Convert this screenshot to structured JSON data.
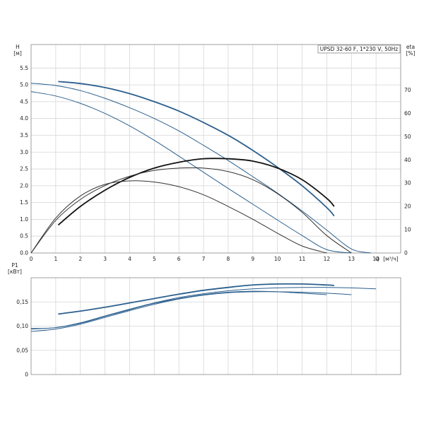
{
  "chart_data": [
    {
      "type": "line",
      "panel": "head-and-efficiency",
      "title": "UPSD 32-60 F, 1*230 V, 50Hz",
      "y_label": "H",
      "y_unit": "[м]",
      "y2_label": "eta",
      "y2_unit": "[%]",
      "x_label": "Q",
      "x_unit": "[м³/ч]",
      "xlim": [
        0,
        15
      ],
      "ylim": [
        0,
        6.2
      ],
      "y2lim": [
        0,
        89.6
      ],
      "grid": true,
      "x_ticks": [
        "0",
        "1",
        "2",
        "3",
        "4",
        "5",
        "6",
        "7",
        "8",
        "9",
        "10",
        "11",
        "12",
        "13",
        "14"
      ],
      "y_ticks": [
        "0.0",
        "0.5",
        "1.0",
        "1.5",
        "2.0",
        "2.5",
        "3.0",
        "3.5",
        "4.0",
        "4.5",
        "5.0",
        "5.5"
      ],
      "y2_ticks": [
        "0",
        "10",
        "20",
        "30",
        "40",
        "50",
        "60",
        "70"
      ],
      "head_curves": [
        {
          "color": "#2b5f8e",
          "width": 1.8,
          "x": [
            1.1,
            2,
            3,
            4,
            5,
            6,
            7,
            8,
            9,
            10,
            11,
            12,
            12.3
          ],
          "y": [
            5.1,
            5.04,
            4.92,
            4.74,
            4.5,
            4.22,
            3.88,
            3.5,
            3.05,
            2.55,
            2.0,
            1.35,
            1.1
          ]
        },
        {
          "color": "#2b5f8e",
          "width": 1.0,
          "x": [
            0,
            1,
            2,
            3,
            4,
            5,
            6,
            7,
            8,
            9,
            10,
            11,
            12,
            13,
            13.8
          ],
          "y": [
            5.05,
            4.98,
            4.83,
            4.6,
            4.32,
            4.0,
            3.63,
            3.2,
            2.75,
            2.27,
            1.78,
            1.25,
            0.68,
            0.12,
            0
          ]
        },
        {
          "color": "#2b5f8e",
          "width": 1.0,
          "x": [
            0,
            1,
            2,
            3,
            4,
            5,
            6,
            7,
            8,
            9,
            10,
            11,
            12,
            13
          ],
          "y": [
            4.8,
            4.67,
            4.45,
            4.15,
            3.78,
            3.35,
            2.88,
            2.4,
            1.92,
            1.45,
            0.98,
            0.52,
            0.1,
            0
          ]
        }
      ],
      "efficiency_curves": [
        {
          "color": "#111111",
          "width": 1.8,
          "x": [
            1.1,
            2,
            3,
            4,
            5,
            6,
            7,
            8,
            9,
            10,
            11,
            12,
            12.3
          ],
          "y": [
            12,
            20,
            27,
            32.5,
            36.5,
            39,
            40.5,
            40.5,
            39.5,
            36.5,
            31.5,
            23.5,
            20
          ]
        },
        {
          "color": "#333333",
          "width": 1.0,
          "x": [
            0,
            1,
            2,
            3,
            4,
            5,
            6,
            7,
            8,
            9,
            10,
            11,
            12,
            13
          ],
          "y": [
            0,
            14,
            23,
            29,
            33,
            35.5,
            36.5,
            36.5,
            35,
            31.5,
            25.5,
            17.5,
            7.5,
            0
          ]
        },
        {
          "color": "#333333",
          "width": 1.0,
          "x": [
            0,
            1,
            2,
            3,
            4,
            5,
            6,
            7,
            8,
            9,
            10,
            11,
            12
          ],
          "y": [
            0,
            15,
            24.5,
            29.5,
            31,
            30.5,
            28.5,
            25,
            20,
            14.5,
            8.5,
            3,
            0
          ]
        }
      ]
    },
    {
      "type": "line",
      "panel": "power",
      "y_label": "P1",
      "y_unit": "[кВт]",
      "xlim": [
        0,
        15
      ],
      "ylim": [
        0,
        0.2
      ],
      "grid": true,
      "y_ticks": [
        "0",
        "0,05",
        "0,10",
        "0,15"
      ],
      "power_curves": [
        {
          "color": "#2b5f8e",
          "width": 1.8,
          "x": [
            1.1,
            2,
            3,
            4,
            5,
            6,
            7,
            8,
            9,
            10,
            11,
            12,
            12.3
          ],
          "y": [
            0.125,
            0.131,
            0.139,
            0.148,
            0.157,
            0.166,
            0.174,
            0.18,
            0.185,
            0.187,
            0.187,
            0.185,
            0.184
          ]
        },
        {
          "color": "#2b5f8e",
          "width": 1.0,
          "x": [
            0,
            1,
            2,
            3,
            4,
            5,
            6,
            7,
            8,
            9,
            10,
            11,
            12,
            13,
            14
          ],
          "y": [
            0.095,
            0.097,
            0.107,
            0.121,
            0.135,
            0.148,
            0.159,
            0.167,
            0.173,
            0.177,
            0.179,
            0.18,
            0.18,
            0.179,
            0.177
          ]
        },
        {
          "color": "#2b5f8e",
          "width": 1.0,
          "x": [
            0,
            1,
            2,
            3,
            4,
            5,
            6,
            7,
            8,
            9,
            10,
            11,
            12,
            13
          ],
          "y": [
            0.089,
            0.094,
            0.104,
            0.118,
            0.132,
            0.145,
            0.156,
            0.164,
            0.169,
            0.171,
            0.171,
            0.17,
            0.168,
            0.165
          ]
        },
        {
          "color": "#2b5f8e",
          "width": 1.0,
          "x": [
            0,
            1,
            2,
            3,
            4,
            5,
            6,
            7,
            8,
            9,
            10,
            11,
            12
          ],
          "y": [
            0.094,
            0.097,
            0.106,
            0.12,
            0.134,
            0.147,
            0.157,
            0.165,
            0.17,
            0.172,
            0.171,
            0.168,
            0.165
          ]
        }
      ]
    }
  ]
}
